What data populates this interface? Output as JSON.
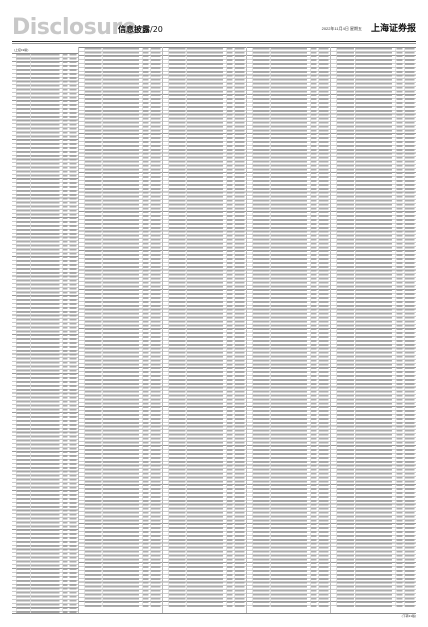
{
  "header": {
    "brand": "Disclosure",
    "section_title": "信息披露",
    "page_number": "/20",
    "date_line": "2022年11月4日 星期五",
    "masthead": "上海证券报"
  },
  "columns": [
    {
      "label": "(上接19版)"
    },
    {
      "label": ""
    },
    {
      "label": ""
    },
    {
      "label": ""
    },
    {
      "label": ""
    },
    {
      "label": ""
    }
  ],
  "footer": {
    "continued": "(下转21版)"
  },
  "colors": {
    "brand": "#c8c8c8",
    "rule": "#333333"
  }
}
